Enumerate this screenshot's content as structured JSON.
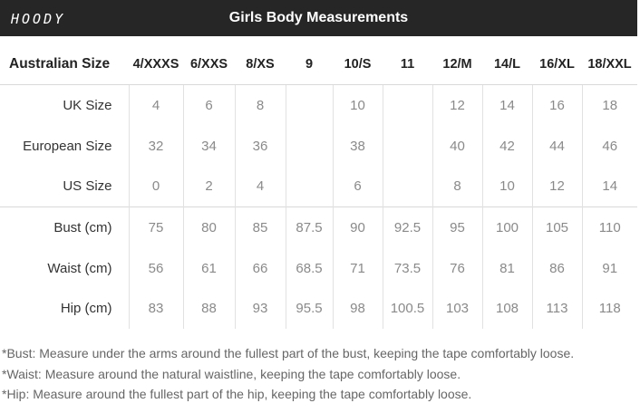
{
  "header": {
    "logo_text": "HOODY",
    "title": "Girls Body Measurements",
    "background": "#262626"
  },
  "table": {
    "row_header": "Australian Size",
    "columns": [
      "4/XXXS",
      "6/XXS",
      "8/XS",
      "9",
      "10/S",
      "11",
      "12/M",
      "14/L",
      "16/XL",
      "18/XXL"
    ],
    "rows": [
      {
        "label": "UK Size",
        "values": [
          "4",
          "6",
          "8",
          "",
          "10",
          "",
          "12",
          "14",
          "16",
          "18"
        ]
      },
      {
        "label": "European Size",
        "values": [
          "32",
          "34",
          "36",
          "",
          "38",
          "",
          "40",
          "42",
          "44",
          "46"
        ]
      },
      {
        "label": "US Size",
        "values": [
          "0",
          "2",
          "4",
          "",
          "6",
          "",
          "8",
          "10",
          "12",
          "14"
        ]
      },
      {
        "label": "Bust (cm)",
        "values": [
          "75",
          "80",
          "85",
          "87.5",
          "90",
          "92.5",
          "95",
          "100",
          "105",
          "110"
        ]
      },
      {
        "label": "Waist (cm)",
        "values": [
          "56",
          "61",
          "66",
          "68.5",
          "71",
          "73.5",
          "76",
          "81",
          "86",
          "91"
        ]
      },
      {
        "label": "Hip (cm)",
        "values": [
          "83",
          "88",
          "93",
          "95.5",
          "98",
          "100.5",
          "103",
          "108",
          "113",
          "118"
        ]
      }
    ]
  },
  "notes": [
    "*Bust: Measure under the arms around the fullest part of the bust, keeping the tape comfortably loose.",
    "*Waist: Measure around the natural waistline, keeping the tape comfortably loose.",
    "*Hip: Measure around the fullest part of the hip, keeping the tape comfortably loose."
  ]
}
